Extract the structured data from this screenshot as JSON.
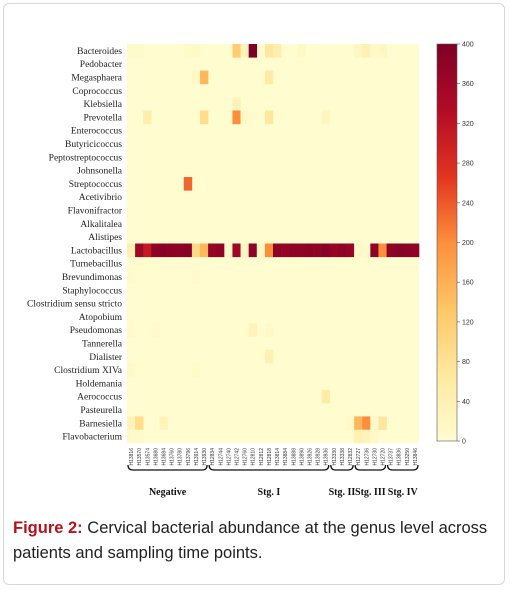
{
  "caption": {
    "label": "Figure 2:",
    "text": " Cervical bacterial abundance at the genus level across patients and sampling time points."
  },
  "colors": {
    "low": "#fffcd0",
    "scale": [
      "#fffcd0",
      "#ffe9a0",
      "#fec665",
      "#fd8f3c",
      "#e2341f",
      "#b30b26",
      "#7f0026"
    ]
  },
  "chart_data": {
    "type": "heatmap",
    "genera": [
      "Bacteroides",
      "Pedobacter",
      "Megasphaera",
      "Coprococcus",
      "Klebsiella",
      "Prevotella",
      "Enterococcus",
      "Butyricicoccus",
      "Peptostreptococcus",
      "Johnsonella",
      "Streptococcus",
      "Acetivibrio",
      "Flavonifractor",
      "Alkalitalea",
      "Alistipes",
      "Lactobacillus",
      "Turnebacillus",
      "Brevundimonas",
      "Staphylococcus",
      "Clostridium sensu stricto",
      "Atopobium",
      "Pseudomonas",
      "Tannerella",
      "Dialister",
      "Clostridium XIVa",
      "Holdemania",
      "Aerococcus",
      "Pasteurella",
      "Barnesiella",
      "Flavobacterium"
    ],
    "samples": [
      "H13816",
      "H13570",
      "H13574",
      "H13680",
      "H13684",
      "H13760",
      "H13780",
      "H13796",
      "H13914",
      "H13930",
      "H12834",
      "H12744",
      "H12740",
      "H12742",
      "H12760",
      "H12810",
      "H12812",
      "H12818",
      "H13814",
      "H13884",
      "H13888",
      "H13890",
      "H13926",
      "H13928",
      "H13936",
      "H13330",
      "H13338",
      "H12832",
      "H12727",
      "H12736",
      "H12730",
      "H12720",
      "H13737",
      "H13836",
      "H13250",
      "H13846"
    ],
    "groups": [
      {
        "name": "Negative",
        "start": 0,
        "end": 9
      },
      {
        "name": "Stg. I",
        "start": 10,
        "end": 24
      },
      {
        "name": "Stg. II",
        "start": 25,
        "end": 27
      },
      {
        "name": "Stg. III",
        "start": 28,
        "end": 31
      },
      {
        "name": "Stg. IV",
        "start": 32,
        "end": 35
      }
    ],
    "values_sparse": [
      [
        0,
        0,
        8
      ],
      [
        0,
        1,
        6
      ],
      [
        0,
        7,
        8
      ],
      [
        0,
        8,
        10
      ],
      [
        0,
        13,
        120
      ],
      [
        0,
        14,
        28
      ],
      [
        0,
        15,
        400
      ],
      [
        0,
        17,
        70
      ],
      [
        0,
        18,
        50
      ],
      [
        0,
        21,
        12
      ],
      [
        0,
        28,
        20
      ],
      [
        0,
        29,
        40
      ],
      [
        0,
        30,
        10
      ],
      [
        0,
        31,
        20
      ],
      [
        2,
        8,
        14
      ],
      [
        2,
        9,
        150
      ],
      [
        2,
        17,
        60
      ],
      [
        4,
        13,
        30
      ],
      [
        5,
        2,
        50
      ],
      [
        5,
        9,
        90
      ],
      [
        5,
        13,
        200
      ],
      [
        5,
        14,
        10
      ],
      [
        5,
        17,
        70
      ],
      [
        5,
        24,
        25
      ],
      [
        10,
        7,
        230
      ],
      [
        15,
        0,
        40
      ],
      [
        15,
        1,
        360
      ],
      [
        15,
        2,
        310
      ],
      [
        15,
        3,
        380
      ],
      [
        15,
        4,
        390
      ],
      [
        15,
        5,
        385
      ],
      [
        15,
        6,
        380
      ],
      [
        15,
        7,
        390
      ],
      [
        15,
        8,
        100
      ],
      [
        15,
        9,
        150
      ],
      [
        15,
        10,
        370
      ],
      [
        15,
        11,
        380
      ],
      [
        15,
        12,
        10
      ],
      [
        15,
        13,
        360
      ],
      [
        15,
        14,
        20
      ],
      [
        15,
        15,
        380
      ],
      [
        15,
        16,
        15
      ],
      [
        15,
        17,
        200
      ],
      [
        15,
        18,
        380
      ],
      [
        15,
        19,
        370
      ],
      [
        15,
        20,
        380
      ],
      [
        15,
        21,
        380
      ],
      [
        15,
        22,
        385
      ],
      [
        15,
        23,
        380
      ],
      [
        15,
        24,
        390
      ],
      [
        15,
        25,
        370
      ],
      [
        15,
        26,
        380
      ],
      [
        15,
        27,
        370
      ],
      [
        15,
        28,
        10
      ],
      [
        15,
        29,
        8
      ],
      [
        15,
        30,
        380
      ],
      [
        15,
        31,
        200
      ],
      [
        15,
        32,
        380
      ],
      [
        15,
        33,
        390
      ],
      [
        15,
        34,
        385
      ],
      [
        15,
        35,
        380
      ],
      [
        17,
        0,
        8
      ],
      [
        17,
        8,
        6
      ],
      [
        21,
        0,
        8
      ],
      [
        21,
        3,
        6
      ],
      [
        21,
        15,
        30
      ],
      [
        21,
        17,
        12
      ],
      [
        23,
        17,
        40
      ],
      [
        24,
        0,
        10
      ],
      [
        24,
        8,
        8
      ],
      [
        26,
        24,
        60
      ],
      [
        28,
        0,
        30
      ],
      [
        28,
        1,
        90
      ],
      [
        28,
        4,
        30
      ],
      [
        28,
        27,
        10
      ],
      [
        28,
        28,
        150
      ],
      [
        28,
        29,
        200
      ],
      [
        28,
        30,
        10
      ],
      [
        28,
        31,
        70
      ],
      [
        29,
        0,
        10
      ],
      [
        29,
        1,
        8
      ],
      [
        29,
        28,
        40
      ],
      [
        29,
        29,
        30
      ],
      [
        29,
        30,
        10
      ]
    ],
    "colorbar": {
      "min": 0,
      "max": 400,
      "ticks": [
        0,
        40,
        80,
        120,
        160,
        200,
        240,
        280,
        320,
        360,
        400
      ]
    }
  }
}
